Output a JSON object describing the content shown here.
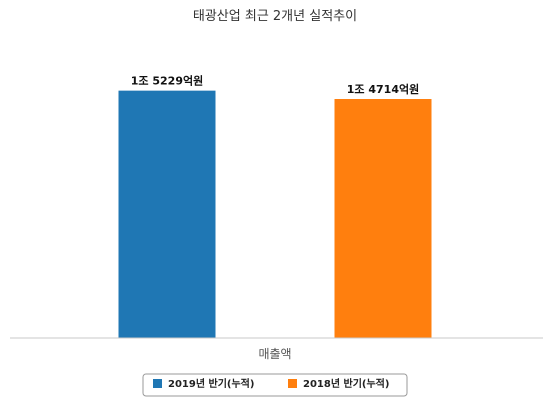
{
  "chart_data": {
    "type": "bar",
    "title": "태광산업 최근 2개년 실적추이",
    "categories": [
      "매출액"
    ],
    "series": [
      {
        "name": "2019년 반기(누적)",
        "values": [
          15229
        ],
        "label": "1조 5229억원",
        "color": "#1f77b4"
      },
      {
        "name": "2018년 반기(누적)",
        "values": [
          14714
        ],
        "label": "1조 4714억원",
        "color": "#ff7f0e"
      }
    ],
    "ylim": [
      0,
      16500
    ],
    "grid": false,
    "legend_position": "bottom"
  }
}
